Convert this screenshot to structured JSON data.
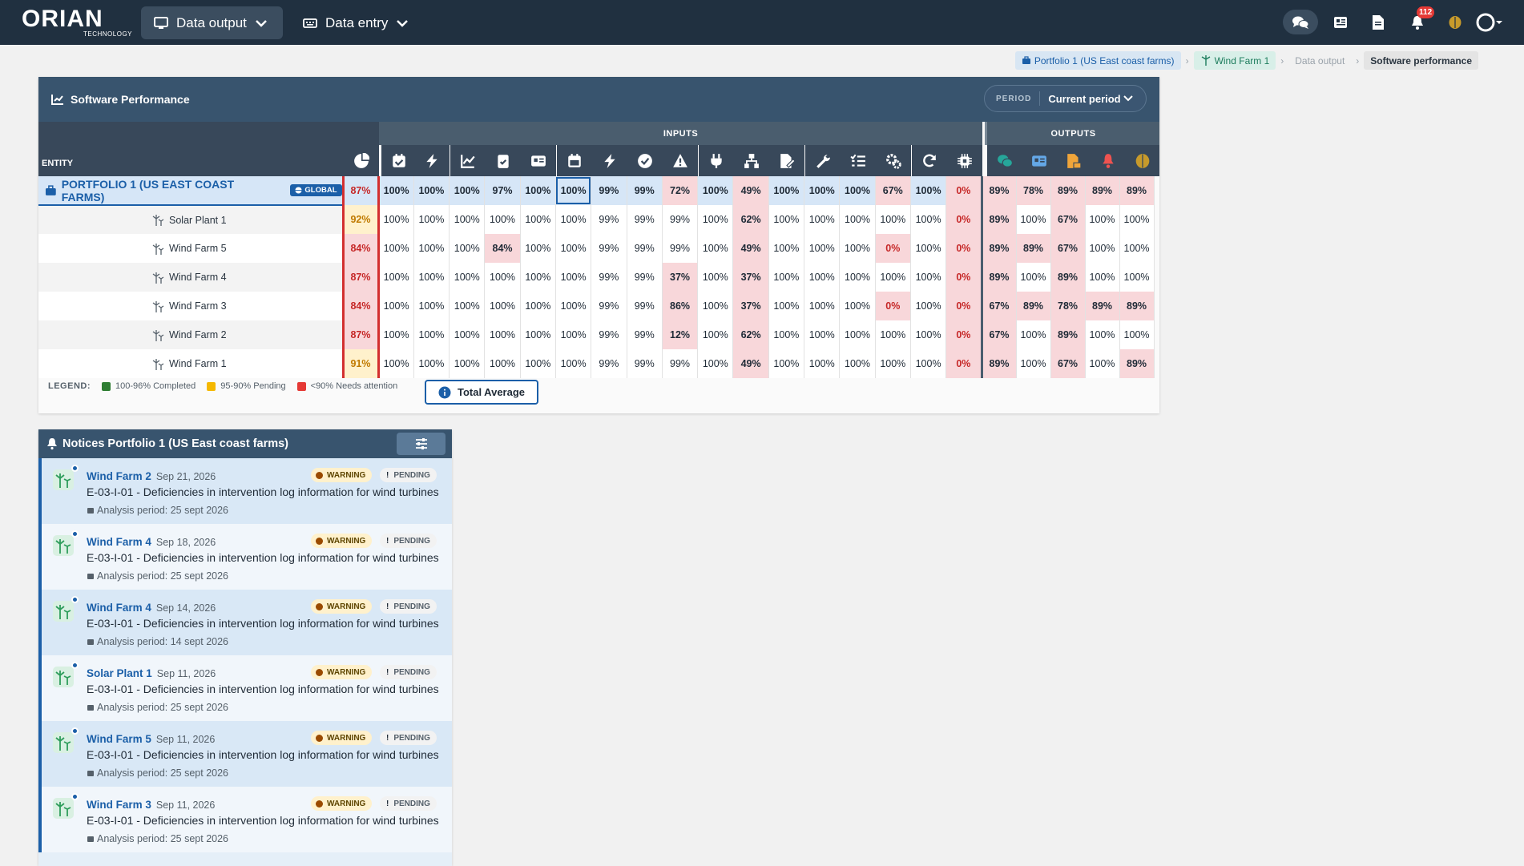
{
  "brand": {
    "name": "ORIAN",
    "sub": "TECHNOLOGY"
  },
  "nav": {
    "data_output": "Data output",
    "data_entry": "Data entry"
  },
  "notifications_count": "112",
  "breadcrumb": [
    "Portfolio 1 (US East coast farms)",
    "Wind Farm 1",
    "Data output",
    "Software performance"
  ],
  "perf": {
    "title": "Software Performance",
    "period_label": "PERIOD",
    "period_value": "Current period",
    "inputs_label": "INPUTS",
    "outputs_label": "OUTPUTS",
    "entity_label": "ENTITY",
    "global_badge": "GLOBAL",
    "input_icons": [
      "calendar-check-icon",
      "bolt-icon",
      "line-chart-icon",
      "clipboard-icon",
      "newspaper-icon",
      "calendar-icon",
      "bolt-icon-2",
      "check-circle-icon",
      "warning-icon",
      "plug-icon",
      "sitemap-icon",
      "file-signature-icon",
      "wrench-icon",
      "list-check-icon",
      "gears-icon",
      "refresh-icon",
      "chip-icon"
    ],
    "output_icons": [
      "comments-icon",
      "newspaper-output-icon",
      "file-output-icon",
      "bell-output-icon",
      "brain-output-icon"
    ],
    "rows": [
      {
        "name": "PORTFOLIO 1 (US EAST COAST FARMS)",
        "avg": "87%",
        "vals": [
          "100%",
          "100%",
          "100%",
          "97%",
          "100%",
          "100%",
          "99%",
          "99%",
          "72%",
          "100%",
          "49%",
          "100%",
          "100%",
          "100%",
          "67%",
          "100%",
          "0%",
          "89%",
          "78%",
          "89%",
          "89%",
          "89%"
        ]
      },
      {
        "name": "Solar Plant 1",
        "avg": "92%",
        "vals": [
          "100%",
          "100%",
          "100%",
          "100%",
          "100%",
          "100%",
          "99%",
          "99%",
          "99%",
          "100%",
          "62%",
          "100%",
          "100%",
          "100%",
          "100%",
          "100%",
          "0%",
          "89%",
          "100%",
          "67%",
          "100%",
          "100%"
        ]
      },
      {
        "name": "Wind Farm 5",
        "avg": "84%",
        "vals": [
          "100%",
          "100%",
          "100%",
          "84%",
          "100%",
          "100%",
          "99%",
          "99%",
          "99%",
          "100%",
          "49%",
          "100%",
          "100%",
          "100%",
          "0%",
          "100%",
          "0%",
          "89%",
          "89%",
          "67%",
          "100%",
          "100%"
        ]
      },
      {
        "name": "Wind Farm 4",
        "avg": "87%",
        "vals": [
          "100%",
          "100%",
          "100%",
          "100%",
          "100%",
          "100%",
          "99%",
          "99%",
          "37%",
          "100%",
          "37%",
          "100%",
          "100%",
          "100%",
          "100%",
          "100%",
          "0%",
          "89%",
          "100%",
          "89%",
          "100%",
          "100%"
        ]
      },
      {
        "name": "Wind Farm 3",
        "avg": "84%",
        "vals": [
          "100%",
          "100%",
          "100%",
          "100%",
          "100%",
          "100%",
          "99%",
          "99%",
          "86%",
          "100%",
          "37%",
          "100%",
          "100%",
          "100%",
          "0%",
          "100%",
          "0%",
          "67%",
          "89%",
          "78%",
          "89%",
          "89%"
        ]
      },
      {
        "name": "Wind Farm 2",
        "avg": "87%",
        "vals": [
          "100%",
          "100%",
          "100%",
          "100%",
          "100%",
          "100%",
          "99%",
          "99%",
          "12%",
          "100%",
          "62%",
          "100%",
          "100%",
          "100%",
          "100%",
          "100%",
          "0%",
          "67%",
          "100%",
          "89%",
          "100%",
          "100%"
        ]
      },
      {
        "name": "Wind Farm 1",
        "avg": "91%",
        "vals": [
          "100%",
          "100%",
          "100%",
          "100%",
          "100%",
          "100%",
          "99%",
          "99%",
          "99%",
          "100%",
          "49%",
          "100%",
          "100%",
          "100%",
          "100%",
          "100%",
          "0%",
          "89%",
          "100%",
          "67%",
          "100%",
          "89%"
        ]
      }
    ],
    "legend": {
      "label": "LEGEND:",
      "green": "100-96% Completed",
      "yellow": "95-90% Pending",
      "red": "<90% Needs attention"
    },
    "total_average": "Total Average",
    "colors": {
      "green": "#2e7d32",
      "yellow": "#f5b800",
      "red": "#e53935"
    }
  },
  "notices": {
    "title": "Notices Portfolio 1 (US East coast farms)",
    "warning": "WARNING",
    "pending": "PENDING",
    "items": [
      {
        "farm": "Wind Farm 2",
        "date": "Sep 21, 2026",
        "title": "E-03-I-01 - Deficiencies in intervention log information for wind turbines",
        "period": "Analysis period: 25 sept 2026"
      },
      {
        "farm": "Wind Farm 4",
        "date": "Sep 18, 2026",
        "title": "E-03-I-01 - Deficiencies in intervention log information for wind turbines",
        "period": "Analysis period: 25 sept 2026"
      },
      {
        "farm": "Wind Farm 4",
        "date": "Sep 14, 2026",
        "title": "E-03-I-01 - Deficiencies in intervention log information for wind turbines",
        "period": "Analysis period: 14 sept 2026"
      },
      {
        "farm": "Solar Plant 1",
        "date": "Sep 11, 2026",
        "title": "E-03-I-01 - Deficiencies in intervention log information for wind turbines",
        "period": "Analysis period: 25 sept 2026"
      },
      {
        "farm": "Wind Farm 5",
        "date": "Sep 11, 2026",
        "title": "E-03-I-01 - Deficiencies in intervention log information for wind turbines",
        "period": "Analysis period: 25 sept 2026"
      },
      {
        "farm": "Wind Farm 3",
        "date": "Sep 11, 2026",
        "title": "E-03-I-01 - Deficiencies in intervention log information for wind turbines",
        "period": "Analysis period: 25 sept 2026"
      }
    ]
  }
}
